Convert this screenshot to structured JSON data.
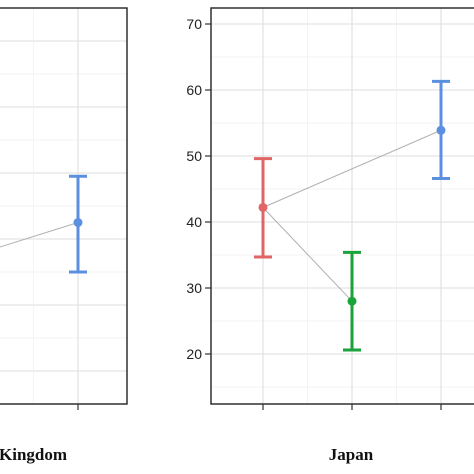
{
  "chart_data": [
    {
      "type": "scatter",
      "panel_title": "Kingdom",
      "ylim": [
        15,
        75
      ],
      "y_ticks": [
        20,
        30,
        40,
        50,
        60,
        70
      ],
      "y_tick_labels_visible": false,
      "grid": true,
      "series": [
        {
          "color": "#5b8fe0",
          "x": 3,
          "y": 42.5,
          "ymin": 35.0,
          "ymax": 49.5
        }
      ],
      "connector": {
        "from_y": 38.5,
        "to_y": 42.5,
        "color": "#b0b0b0"
      }
    },
    {
      "type": "scatter",
      "panel_title": "Japan",
      "ylim": [
        12,
        73
      ],
      "y_ticks": [
        20,
        30,
        40,
        50,
        60,
        70
      ],
      "y_tick_labels": [
        "20",
        "30",
        "40",
        "50",
        "60",
        "70"
      ],
      "grid": true,
      "series": [
        {
          "color": "#e06666",
          "x": 1,
          "y": 42.2,
          "ymin": 34.7,
          "ymax": 49.6
        },
        {
          "color": "#1aa33a",
          "x": 2,
          "y": 28.0,
          "ymin": 20.6,
          "ymax": 35.4
        },
        {
          "color": "#5b8fe0",
          "x": 3,
          "y": 53.9,
          "ymin": 46.6,
          "ymax": 61.3
        }
      ],
      "connectors": [
        {
          "from": 1,
          "to": 2,
          "color": "#b0b0b0"
        },
        {
          "from": 1,
          "to": 3,
          "color": "#b0b0b0"
        }
      ]
    }
  ]
}
